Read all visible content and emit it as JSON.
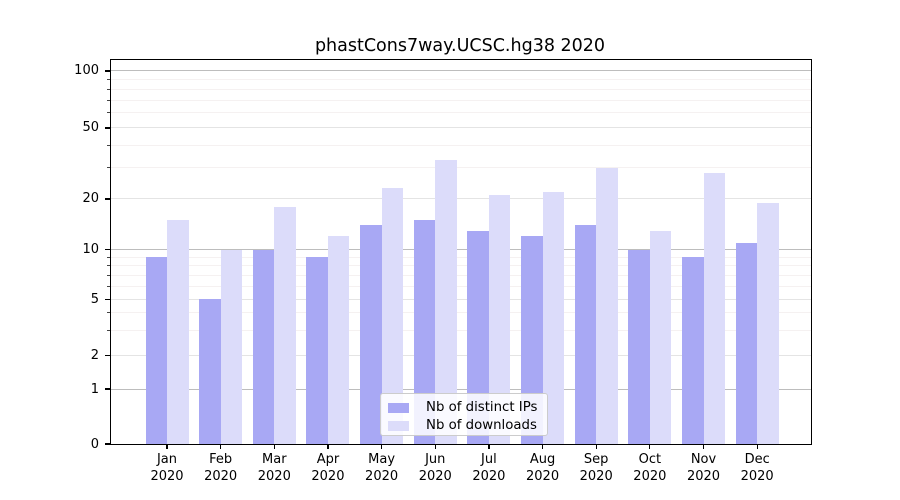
{
  "chart_data": {
    "type": "bar",
    "title": "phastCons7way.UCSC.hg38 2020",
    "yscale": "log",
    "ylim": [
      0,
      110
    ],
    "grid": "major+minor horizontal",
    "legend_position": "lower center",
    "y_ticks": [
      0,
      1,
      2,
      5,
      10,
      20,
      50,
      100
    ],
    "y_minor_ticks": [
      3,
      4,
      6,
      7,
      8,
      9,
      30,
      40,
      60,
      70,
      80,
      90
    ],
    "categories": [
      {
        "month": "Jan",
        "year": "2020"
      },
      {
        "month": "Feb",
        "year": "2020"
      },
      {
        "month": "Mar",
        "year": "2020"
      },
      {
        "month": "Apr",
        "year": "2020"
      },
      {
        "month": "May",
        "year": "2020"
      },
      {
        "month": "Jun",
        "year": "2020"
      },
      {
        "month": "Jul",
        "year": "2020"
      },
      {
        "month": "Aug",
        "year": "2020"
      },
      {
        "month": "Sep",
        "year": "2020"
      },
      {
        "month": "Oct",
        "year": "2020"
      },
      {
        "month": "Nov",
        "year": "2020"
      },
      {
        "month": "Dec",
        "year": "2020"
      }
    ],
    "series": [
      {
        "name": "Nb of distinct IPs",
        "color": "#a8a8f4",
        "values": [
          9,
          5,
          10,
          9,
          14,
          15,
          13,
          12,
          14,
          10,
          9,
          11
        ]
      },
      {
        "name": "Nb of downloads",
        "color": "#dcdcfa",
        "values": [
          15,
          10,
          18,
          12,
          23,
          33,
          21,
          22,
          30,
          13,
          28,
          19
        ]
      }
    ]
  },
  "colors": {
    "grid_major": "#bdbdbd",
    "grid_mid": "#e4e4e4",
    "grid_minor": "#f5f1f1",
    "axis": "#000000",
    "background": "#ffffff"
  }
}
